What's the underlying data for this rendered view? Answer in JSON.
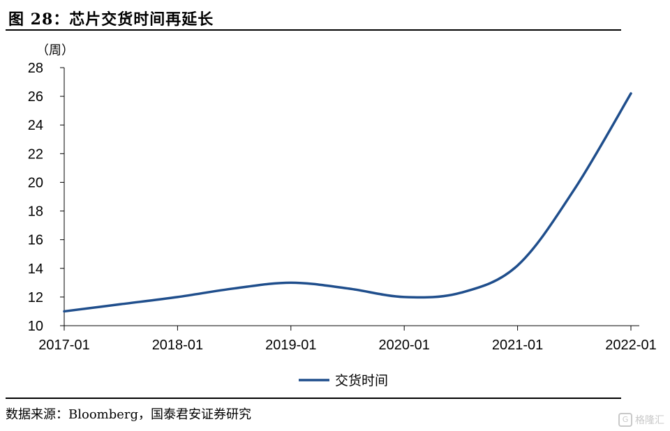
{
  "figure": {
    "title": "图 28：芯片交货时间再延长",
    "source": "数据来源：Bloomberg，国泰君安证券研究",
    "watermark": "格隆汇"
  },
  "chart_data": {
    "type": "line",
    "title": "",
    "ylabel": "（周）",
    "xlabel": "",
    "ylim": [
      10,
      28
    ],
    "yticks": [
      10,
      12,
      14,
      16,
      18,
      20,
      22,
      24,
      26,
      28
    ],
    "xtick_labels": [
      "2017-01",
      "2018-01",
      "2019-01",
      "2020-01",
      "2021-01",
      "2022-01"
    ],
    "x": [
      "2017-01",
      "2017-07",
      "2018-01",
      "2018-07",
      "2019-01",
      "2019-07",
      "2020-01",
      "2020-07",
      "2021-01",
      "2021-07",
      "2022-01"
    ],
    "series": [
      {
        "name": "交货时间",
        "color": "#1f4e8c",
        "values": [
          11.0,
          11.5,
          12.0,
          12.6,
          13.0,
          12.6,
          12.0,
          12.3,
          14.2,
          19.5,
          26.2
        ]
      }
    ],
    "grid": false,
    "legend": "bottom-center"
  }
}
